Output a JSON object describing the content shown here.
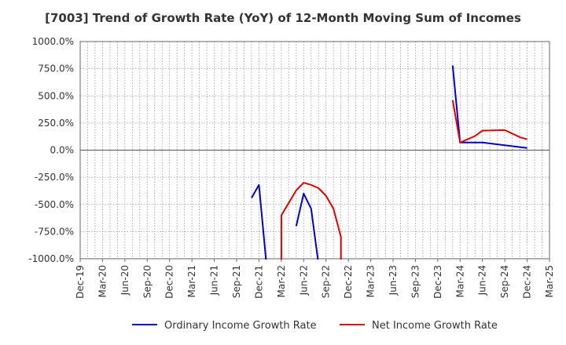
{
  "chart_data": {
    "type": "line",
    "title": "[7003]  Trend of Growth Rate (YoY) of 12-Month Moving Sum of Incomes",
    "xlabel": "",
    "ylabel": "",
    "x_ticks": [
      "Dec-19",
      "Mar-20",
      "Jun-20",
      "Sep-20",
      "Dec-20",
      "Mar-21",
      "Jun-21",
      "Sep-21",
      "Dec-21",
      "Mar-22",
      "Jun-22",
      "Sep-22",
      "Dec-22",
      "Mar-23",
      "Jun-23",
      "Sep-23",
      "Dec-23",
      "Mar-24",
      "Jun-24",
      "Sep-24",
      "Dec-24",
      "Mar-25"
    ],
    "xlim": [
      "2019-12",
      "2025-03"
    ],
    "y_ticks": [
      1000,
      750,
      500,
      250,
      0,
      -250,
      -500,
      -750,
      -1000
    ],
    "y_tick_labels": [
      "1000.0%",
      "750.0%",
      "500.0%",
      "250.0%",
      "0.0%",
      "-250.0%",
      "-500.0%",
      "-750.0%",
      "-1000.0%"
    ],
    "ylim": [
      -1000,
      1000
    ],
    "grid": true,
    "legend_position": "bottom",
    "series": [
      {
        "name": "Ordinary Income Growth Rate",
        "color": "#0000cc",
        "segments": [
          [
            [
              "2021-11",
              -440
            ],
            [
              "2021-12",
              -320
            ],
            [
              "2022-01",
              -1050
            ]
          ],
          [
            [
              "2022-05",
              -700
            ],
            [
              "2022-06",
              -400
            ],
            [
              "2022-07",
              -540
            ],
            [
              "2022-08",
              -1050
            ]
          ],
          [
            [
              "2024-02",
              780
            ],
            [
              "2024-03",
              70
            ],
            [
              "2024-06",
              70
            ],
            [
              "2024-09",
              45
            ],
            [
              "2024-12",
              20
            ]
          ]
        ]
      },
      {
        "name": "Net Income Growth Rate",
        "color": "#dd0000",
        "segments": [
          [
            [
              "2022-03",
              -1050
            ],
            [
              "2022-03",
              -600
            ],
            [
              "2022-05",
              -370
            ],
            [
              "2022-06",
              -300
            ],
            [
              "2022-07",
              -320
            ],
            [
              "2022-08",
              -350
            ],
            [
              "2022-09",
              -420
            ],
            [
              "2022-10",
              -540
            ],
            [
              "2022-11",
              -800
            ],
            [
              "2022-11",
              -1050
            ]
          ],
          [
            [
              "2024-02",
              460
            ],
            [
              "2024-03",
              70
            ],
            [
              "2024-05",
              130
            ],
            [
              "2024-06",
              180
            ],
            [
              "2024-09",
              185
            ],
            [
              "2024-11",
              120
            ],
            [
              "2024-12",
              100
            ]
          ]
        ]
      }
    ]
  }
}
